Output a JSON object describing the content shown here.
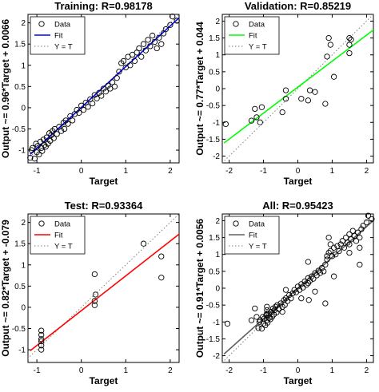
{
  "colors": {
    "training_fit": "#0000ff",
    "validation_fit": "#00ff00",
    "test_fit": "#ff0000",
    "all_fit": "#606060",
    "reference_line": "#808080",
    "data_marker": "#000000"
  },
  "chart_data": [
    {
      "type": "scatter",
      "title": "Training: R=0.98178",
      "xlabel": "Target",
      "ylabel": "Output ~= 0.96*Target + 0.0066",
      "xlim": [
        -1.2,
        2.2
      ],
      "ylim": [
        -1.3,
        2.2
      ],
      "xticks": [
        -1,
        0,
        1,
        2
      ],
      "yticks": [
        -1,
        -0.5,
        0,
        0.5,
        1,
        1.5,
        2
      ],
      "xtick_labels": [
        "-1",
        "0",
        "1",
        "2"
      ],
      "ytick_labels": [
        "-1",
        "-0.5",
        "0",
        "0.5",
        "1",
        "1.5",
        "2"
      ],
      "legend": {
        "placement": "top-left",
        "entries": [
          "Data",
          "Fit",
          "Y = T"
        ]
      },
      "fit": {
        "slope": 0.96,
        "intercept": 0.0066
      },
      "grid": false,
      "series": [
        {
          "name": "Data",
          "points": [
            [
              -1.15,
              -1.18
            ],
            [
              -1.12,
              -1.0
            ],
            [
              -1.1,
              -0.95
            ],
            [
              -1.05,
              -1.2
            ],
            [
              -1.02,
              -0.85
            ],
            [
              -1.0,
              -1.05
            ],
            [
              -0.98,
              -0.9
            ],
            [
              -0.95,
              -1.1
            ],
            [
              -0.92,
              -0.8
            ],
            [
              -0.9,
              -0.95
            ],
            [
              -0.88,
              -1.02
            ],
            [
              -0.85,
              -0.75
            ],
            [
              -0.83,
              -0.88
            ],
            [
              -0.8,
              -0.92
            ],
            [
              -0.78,
              -0.7
            ],
            [
              -0.75,
              -0.85
            ],
            [
              -0.72,
              -0.6
            ],
            [
              -0.7,
              -0.78
            ],
            [
              -0.68,
              -0.65
            ],
            [
              -0.65,
              -0.55
            ],
            [
              -0.62,
              -0.72
            ],
            [
              -0.6,
              -0.5
            ],
            [
              -0.55,
              -0.62
            ],
            [
              -0.5,
              -0.45
            ],
            [
              -0.45,
              -0.55
            ],
            [
              -0.4,
              -0.35
            ],
            [
              -0.38,
              -0.5
            ],
            [
              -0.35,
              -0.3
            ],
            [
              -0.3,
              -0.38
            ],
            [
              -0.25,
              -0.2
            ],
            [
              -0.2,
              -0.3
            ],
            [
              -0.15,
              -0.15
            ],
            [
              -0.1,
              -0.05
            ],
            [
              -0.05,
              -0.12
            ],
            [
              0.0,
              0.05
            ],
            [
              0.05,
              -0.05
            ],
            [
              0.1,
              0.12
            ],
            [
              0.15,
              0.02
            ],
            [
              0.2,
              0.2
            ],
            [
              0.25,
              0.1
            ],
            [
              0.3,
              0.3
            ],
            [
              0.35,
              0.22
            ],
            [
              0.4,
              0.35
            ],
            [
              0.45,
              0.28
            ],
            [
              0.5,
              0.45
            ],
            [
              0.55,
              0.38
            ],
            [
              0.6,
              0.52
            ],
            [
              0.65,
              0.45
            ],
            [
              0.7,
              0.6
            ],
            [
              0.75,
              0.5
            ],
            [
              0.8,
              0.7
            ],
            [
              0.85,
              0.85
            ],
            [
              0.9,
              1.05
            ],
            [
              0.95,
              1.1
            ],
            [
              1.0,
              0.95
            ],
            [
              1.05,
              1.2
            ],
            [
              1.1,
              1.0
            ],
            [
              1.15,
              1.25
            ],
            [
              1.2,
              1.1
            ],
            [
              1.25,
              1.3
            ],
            [
              1.3,
              1.4
            ],
            [
              1.35,
              1.2
            ],
            [
              1.4,
              1.5
            ],
            [
              1.45,
              1.35
            ],
            [
              1.5,
              1.6
            ],
            [
              1.55,
              1.45
            ],
            [
              1.6,
              1.7
            ],
            [
              1.65,
              1.55
            ],
            [
              1.7,
              1.4
            ],
            [
              1.75,
              1.65
            ],
            [
              1.8,
              1.5
            ],
            [
              1.85,
              1.75
            ],
            [
              1.9,
              1.85
            ],
            [
              2.0,
              1.95
            ],
            [
              2.05,
              2.15
            ],
            [
              2.15,
              2.05
            ]
          ]
        }
      ]
    },
    {
      "type": "scatter",
      "title": "Validation: R=0.85219",
      "xlabel": "Target",
      "ylabel": "Output ~= 0.77*Target + 0.044",
      "xlim": [
        -2.2,
        2.2
      ],
      "ylim": [
        -2.2,
        2.2
      ],
      "xticks": [
        -2,
        -1,
        0,
        1,
        2
      ],
      "yticks": [
        -2,
        -1.5,
        -1,
        -0.5,
        0,
        0.5,
        1,
        1.5,
        2
      ],
      "xtick_labels": [
        "-2",
        "-1",
        "0",
        "1",
        "2"
      ],
      "ytick_labels": [
        "-2",
        "-1.5",
        "-1",
        "-0.5",
        "0",
        "0.5",
        "1",
        "1.5",
        "2"
      ],
      "legend": {
        "placement": "top-left",
        "entries": [
          "Data",
          "Fit",
          "Y = T"
        ]
      },
      "fit": {
        "slope": 0.77,
        "intercept": 0.044
      },
      "grid": false,
      "series": [
        {
          "name": "Data",
          "points": [
            [
              -2.1,
              -1.05
            ],
            [
              -1.35,
              -0.95
            ],
            [
              -1.25,
              -0.6
            ],
            [
              -1.2,
              -0.85
            ],
            [
              -1.1,
              -1.0
            ],
            [
              -1.05,
              -0.55
            ],
            [
              -0.45,
              -0.7
            ],
            [
              -0.35,
              -0.3
            ],
            [
              -0.35,
              -0.05
            ],
            [
              0.1,
              -0.3
            ],
            [
              0.3,
              -0.35
            ],
            [
              0.35,
              -0.05
            ],
            [
              0.5,
              -0.1
            ],
            [
              0.8,
              -0.45
            ],
            [
              0.85,
              0.95
            ],
            [
              0.9,
              1.5
            ],
            [
              0.95,
              1.3
            ],
            [
              1.05,
              0.35
            ],
            [
              1.5,
              1.3
            ],
            [
              1.5,
              1.05
            ],
            [
              1.5,
              1.5
            ],
            [
              1.55,
              1.45
            ]
          ]
        }
      ]
    },
    {
      "type": "scatter",
      "title": "Test: R=0.93364",
      "xlabel": "Target",
      "ylabel": "Output ~= 0.82*Target + -0.079",
      "xlim": [
        -1.2,
        2.2
      ],
      "ylim": [
        -1.3,
        2.2
      ],
      "xticks": [
        -1,
        0,
        1,
        2
      ],
      "yticks": [
        -1,
        -0.5,
        0,
        0.5,
        1,
        1.5,
        2
      ],
      "xtick_labels": [
        "-1",
        "0",
        "1",
        "2"
      ],
      "ytick_labels": [
        "-1",
        "-0.5",
        "0",
        "0.5",
        "1",
        "1.5",
        "2"
      ],
      "legend": {
        "placement": "top-left",
        "entries": [
          "Data",
          "Fit",
          "Y = T"
        ]
      },
      "fit": {
        "slope": 0.82,
        "intercept": -0.079
      },
      "grid": false,
      "series": [
        {
          "name": "Data",
          "points": [
            [
              -0.9,
              -0.55
            ],
            [
              -0.9,
              -0.65
            ],
            [
              -0.9,
              -0.75
            ],
            [
              -0.9,
              -0.8
            ],
            [
              -0.9,
              -0.9
            ],
            [
              -0.9,
              -1.0
            ],
            [
              0.3,
              0.78
            ],
            [
              0.3,
              0.15
            ],
            [
              0.3,
              0.05
            ],
            [
              0.32,
              0.3
            ],
            [
              1.4,
              1.5
            ],
            [
              1.8,
              1.2
            ],
            [
              1.8,
              0.7
            ]
          ]
        }
      ]
    },
    {
      "type": "scatter",
      "title": "All: R=0.95423",
      "xlabel": "Target",
      "ylabel": "Output ~= 0.91*Target + 0.0056",
      "xlim": [
        -2.2,
        2.2
      ],
      "ylim": [
        -2.2,
        2.2
      ],
      "xticks": [
        -2,
        -1,
        0,
        1,
        2
      ],
      "yticks": [
        -2,
        -1.5,
        -1,
        -0.5,
        0,
        0.5,
        1,
        1.5,
        2
      ],
      "xtick_labels": [
        "-2",
        "-1",
        "0",
        "1",
        "2"
      ],
      "ytick_labels": [
        "-2",
        "-1.5",
        "-1",
        "-0.5",
        "0",
        "0.5",
        "1",
        "1.5",
        "2"
      ],
      "legend": {
        "placement": "top-left",
        "entries": [
          "Data",
          "Fit",
          "Y = T"
        ]
      },
      "fit": {
        "slope": 0.91,
        "intercept": 0.0056
      },
      "grid": false,
      "series": [
        {
          "name": "Data",
          "points": [
            [
              -2.05,
              -1.05
            ],
            [
              -1.35,
              -0.95
            ],
            [
              -1.25,
              -0.6
            ],
            [
              -1.2,
              -0.85
            ],
            [
              -1.15,
              -1.18
            ],
            [
              -1.12,
              -1.0
            ],
            [
              -1.1,
              -0.95
            ],
            [
              -1.05,
              -1.2
            ],
            [
              -1.02,
              -0.85
            ],
            [
              -1.0,
              -1.05
            ],
            [
              -0.98,
              -0.9
            ],
            [
              -0.95,
              -1.1
            ],
            [
              -0.92,
              -0.8
            ],
            [
              -0.9,
              -0.95
            ],
            [
              -0.9,
              -0.55
            ],
            [
              -0.9,
              -0.65
            ],
            [
              -0.9,
              -0.75
            ],
            [
              -0.88,
              -1.02
            ],
            [
              -0.85,
              -0.75
            ],
            [
              -0.83,
              -0.88
            ],
            [
              -0.8,
              -0.92
            ],
            [
              -0.78,
              -0.7
            ],
            [
              -0.75,
              -0.85
            ],
            [
              -0.72,
              -0.6
            ],
            [
              -0.7,
              -0.78
            ],
            [
              -0.68,
              -0.65
            ],
            [
              -0.65,
              -0.55
            ],
            [
              -0.62,
              -0.72
            ],
            [
              -0.6,
              -0.5
            ],
            [
              -0.55,
              -0.62
            ],
            [
              -0.5,
              -0.45
            ],
            [
              -0.45,
              -0.7
            ],
            [
              -0.45,
              -0.55
            ],
            [
              -0.4,
              -0.35
            ],
            [
              -0.38,
              -0.5
            ],
            [
              -0.35,
              -0.3
            ],
            [
              -0.35,
              -0.05
            ],
            [
              -0.3,
              -0.38
            ],
            [
              -0.25,
              -0.2
            ],
            [
              -0.2,
              -0.3
            ],
            [
              -0.15,
              -0.15
            ],
            [
              -0.1,
              -0.05
            ],
            [
              -0.05,
              -0.12
            ],
            [
              0.0,
              0.05
            ],
            [
              0.05,
              -0.05
            ],
            [
              0.1,
              0.12
            ],
            [
              0.1,
              -0.3
            ],
            [
              0.15,
              0.02
            ],
            [
              0.2,
              0.2
            ],
            [
              0.25,
              0.1
            ],
            [
              0.3,
              0.3
            ],
            [
              0.3,
              0.78
            ],
            [
              0.3,
              0.15
            ],
            [
              0.32,
              -0.35
            ],
            [
              0.35,
              0.22
            ],
            [
              0.4,
              0.35
            ],
            [
              0.45,
              0.28
            ],
            [
              0.5,
              0.45
            ],
            [
              0.5,
              -0.1
            ],
            [
              0.55,
              0.38
            ],
            [
              0.6,
              0.52
            ],
            [
              0.65,
              0.45
            ],
            [
              0.7,
              0.6
            ],
            [
              0.75,
              0.5
            ],
            [
              0.8,
              0.7
            ],
            [
              0.8,
              -0.45
            ],
            [
              0.85,
              0.85
            ],
            [
              0.85,
              0.95
            ],
            [
              0.9,
              1.05
            ],
            [
              0.9,
              1.5
            ],
            [
              0.95,
              1.1
            ],
            [
              0.95,
              1.3
            ],
            [
              1.0,
              0.95
            ],
            [
              1.05,
              1.2
            ],
            [
              1.05,
              0.35
            ],
            [
              1.1,
              1.0
            ],
            [
              1.15,
              1.25
            ],
            [
              1.2,
              1.1
            ],
            [
              1.25,
              1.3
            ],
            [
              1.3,
              1.4
            ],
            [
              1.35,
              1.2
            ],
            [
              1.4,
              1.5
            ],
            [
              1.45,
              1.35
            ],
            [
              1.5,
              1.6
            ],
            [
              1.5,
              1.3
            ],
            [
              1.5,
              1.05
            ],
            [
              1.55,
              1.45
            ],
            [
              1.6,
              1.7
            ],
            [
              1.65,
              1.55
            ],
            [
              1.7,
              1.4
            ],
            [
              1.75,
              1.65
            ],
            [
              1.8,
              1.5
            ],
            [
              1.8,
              1.2
            ],
            [
              1.8,
              0.7
            ],
            [
              1.85,
              1.75
            ],
            [
              1.9,
              1.85
            ],
            [
              2.0,
              1.95
            ],
            [
              2.05,
              2.15
            ],
            [
              2.15,
              2.05
            ]
          ]
        }
      ]
    }
  ]
}
